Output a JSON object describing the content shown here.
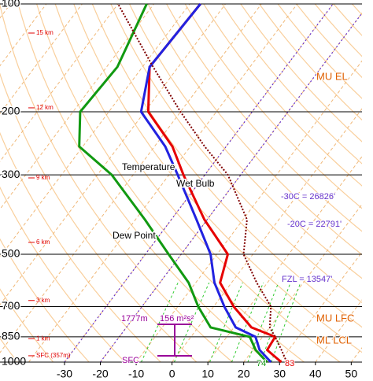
{
  "chart_data": {
    "type": "skewt",
    "pressure": [
      1000,
      925,
      850,
      800,
      700,
      600,
      500,
      400,
      300,
      250,
      200,
      150,
      100
    ],
    "series": [
      {
        "name": "Temperature",
        "color": "#e60000",
        "values": [
          30.5,
          24,
          23.5,
          14.9,
          5.6,
          -3.2,
          -7,
          -20.8,
          -36,
          -45,
          -59,
          -68,
          -67
        ]
      },
      {
        "name": "Wet Bulb",
        "color": "#2222e0",
        "values": [
          27.6,
          21.9,
          18,
          10.5,
          3,
          -4.8,
          -11.8,
          -23,
          -37.6,
          -47,
          -61,
          -68,
          -67
        ]
      },
      {
        "name": "Dew Point",
        "color": "#119911",
        "values": [
          26.5,
          20.8,
          16.4,
          3.5,
          -4.3,
          -12,
          -23.5,
          -37.4,
          -56,
          -71,
          -78,
          -77,
          -82
        ]
      },
      {
        "color": "#800000",
        "values": [
          32,
          28,
          23.5,
          20,
          16,
          7,
          -2.6,
          -8.9,
          -23.6,
          -36,
          -50,
          -67,
          -90
        ]
      }
    ],
    "xlim": [
      -48,
      53
    ],
    "xticks": [
      -30,
      -20,
      -10,
      0,
      10,
      20,
      30,
      40,
      50
    ],
    "ylim": [
      1000,
      100
    ],
    "yticks": [
      100,
      200,
      300,
      500,
      700,
      850,
      1000
    ],
    "log_y": true,
    "heights": [
      {
        "label": "15 km",
        "pressure": 120.6
      },
      {
        "label": "12 km",
        "pressure": 195
      },
      {
        "label": "9 km",
        "pressure": 306
      },
      {
        "label": "6 km",
        "pressure": 463
      },
      {
        "label": "3 km",
        "pressure": 673
      },
      {
        "label": "1 km",
        "pressure": 860
      },
      {
        "label": "SFC (357m)",
        "pressure": 960
      }
    ],
    "annotations": [
      "MU EL",
      "MU LFC",
      "ML LCL",
      "-30C = 26826'",
      "-20C = 22791'",
      "FZL = 13547'",
      "1777m",
      "156 m²s²",
      "SFC",
      "74",
      "83"
    ]
  }
}
